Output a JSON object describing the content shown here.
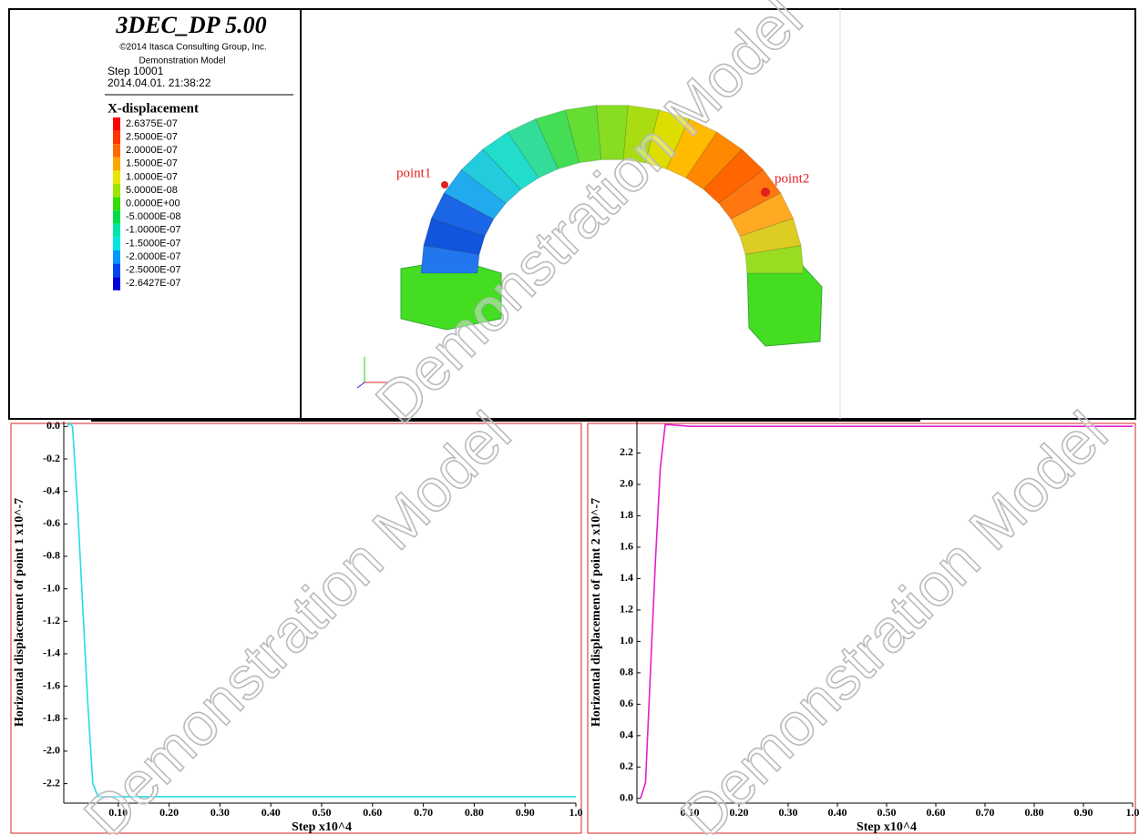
{
  "header": {
    "title": "3DEC_DP 5.00",
    "copyright": "©2014 Itasca Consulting Group, Inc.",
    "model": "Demonstration Model",
    "step": "Step 10001",
    "timestamp": "2014.04.01. 21:38:22"
  },
  "legend": {
    "title": "X-displacement",
    "items": [
      {
        "label": "2.6375E-07",
        "color": "#ff0000"
      },
      {
        "label": "2.5000E-07",
        "color": "#ff3300"
      },
      {
        "label": "2.0000E-07",
        "color": "#ff6a00"
      },
      {
        "label": "1.5000E-07",
        "color": "#ffa500"
      },
      {
        "label": "1.0000E-07",
        "color": "#e6e600"
      },
      {
        "label": "5.0000E-08",
        "color": "#99e600"
      },
      {
        "label": "0.0000E+00",
        "color": "#33dd00"
      },
      {
        "label": "-5.0000E-08",
        "color": "#00dd44"
      },
      {
        "label": "-1.0000E-07",
        "color": "#00e6aa"
      },
      {
        "label": "-1.5000E-07",
        "color": "#00e6e6"
      },
      {
        "label": "-2.0000E-07",
        "color": "#0099ff"
      },
      {
        "label": "-2.5000E-07",
        "color": "#0044ee"
      },
      {
        "label": "-2.6427E-07",
        "color": "#0000dd"
      }
    ]
  },
  "model_view": {
    "points": [
      {
        "label": "point1"
      },
      {
        "label": "point2"
      }
    ]
  },
  "watermark": "Demonstration Model",
  "chart_data": [
    {
      "type": "line",
      "xlabel": "Step x10^4",
      "ylabel": "Horizontal displacement of point 1 x10^-7",
      "x": [
        0,
        0.005,
        0.01,
        0.02,
        0.03,
        0.04,
        0.05,
        0.06,
        0.1,
        0.5,
        1.0
      ],
      "series": [
        {
          "color": "#22dde6",
          "values": [
            0,
            0.02,
            0,
            -0.5,
            -1.1,
            -1.7,
            -2.2,
            -2.28,
            -2.28,
            -2.28,
            -2.28
          ]
        }
      ],
      "xlim": [
        0,
        1.0
      ],
      "xticks": [
        {
          "value": 0.1,
          "label": "0.10"
        },
        {
          "value": 0.2,
          "label": "0.20"
        },
        {
          "value": 0.3,
          "label": "0.30"
        },
        {
          "value": 0.4,
          "label": "0.40"
        },
        {
          "value": 0.5,
          "label": "0.50"
        },
        {
          "value": 0.6,
          "label": "0.60"
        },
        {
          "value": 0.7,
          "label": "0.70"
        },
        {
          "value": 0.8,
          "label": "0.80"
        },
        {
          "value": 0.9,
          "label": "0.90"
        },
        {
          "value": 1.0,
          "label": "1.0"
        }
      ],
      "ylim": [
        -2.32,
        0.03
      ],
      "yticks": [
        {
          "value": 0,
          "label": "0.0"
        },
        -0.2,
        -0.4,
        -0.6,
        -0.8,
        {
          "value": -1.0,
          "label": "-1.0"
        },
        -1.2,
        -1.4,
        -1.6,
        -1.8,
        {
          "value": -2.0,
          "label": "-2.0"
        },
        -2.2
      ]
    },
    {
      "type": "line",
      "xlabel": "Step x10^4",
      "ylabel": "Horizontal displacement of point 2 x10^-7",
      "x": [
        0,
        0.01,
        0.02,
        0.03,
        0.04,
        0.05,
        0.06,
        0.1,
        0.5,
        1.0
      ],
      "series": [
        {
          "color": "#e020d0",
          "values": [
            0,
            0.1,
            0.8,
            1.5,
            2.1,
            2.38,
            2.38,
            2.37,
            2.37,
            2.37
          ]
        }
      ],
      "xlim": [
        0,
        1.0
      ],
      "xticks": [
        {
          "value": 0.1,
          "label": "0.10"
        },
        {
          "value": 0.2,
          "label": "0.20"
        },
        {
          "value": 0.3,
          "label": "0.30"
        },
        {
          "value": 0.4,
          "label": "0.40"
        },
        {
          "value": 0.5,
          "label": "0.50"
        },
        {
          "value": 0.6,
          "label": "0.60"
        },
        {
          "value": 0.7,
          "label": "0.70"
        },
        {
          "value": 0.8,
          "label": "0.80"
        },
        {
          "value": 0.9,
          "label": "0.90"
        },
        {
          "value": 1.0,
          "label": "1.0"
        }
      ],
      "ylim": [
        -0.03,
        2.4
      ],
      "yticks": [
        {
          "value": 0,
          "label": "0.0"
        },
        0.2,
        0.4,
        0.6,
        0.8,
        {
          "value": 1.0,
          "label": "1.0"
        },
        1.2,
        1.4,
        1.6,
        1.8,
        {
          "value": 2.0,
          "label": "2.0"
        },
        2.2
      ]
    }
  ]
}
